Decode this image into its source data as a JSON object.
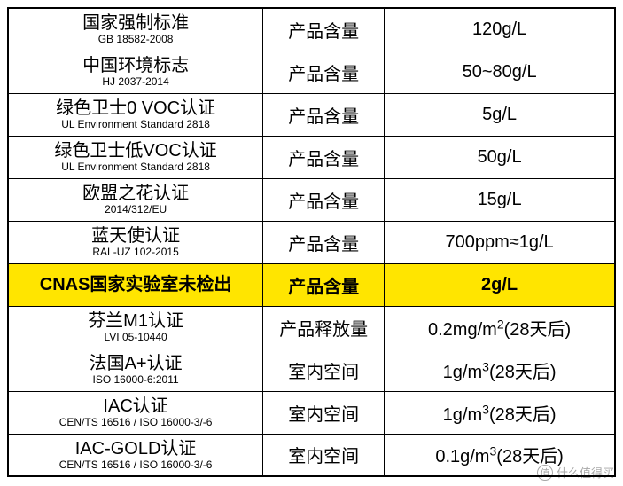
{
  "table": {
    "columns": [
      "name",
      "type",
      "value"
    ],
    "col_widths_pct": [
      42,
      20,
      38
    ],
    "border_color": "#000000",
    "background_color": "#ffffff",
    "highlight_color": "#ffe500",
    "main_fontsize": 20,
    "sub_fontsize": 12,
    "rows": [
      {
        "name": "国家强制标准",
        "sub": "GB 18582-2008",
        "type": "产品含量",
        "value": "120g/L",
        "highlight": false
      },
      {
        "name": "中国环境标志",
        "sub": "HJ 2037-2014",
        "type": "产品含量",
        "value": "50~80g/L",
        "highlight": false
      },
      {
        "name": "绿色卫士0 VOC认证",
        "sub": "UL Environment Standard 2818",
        "type": "产品含量",
        "value": "5g/L",
        "highlight": false
      },
      {
        "name": "绿色卫士低VOC认证",
        "sub": "UL Environment Standard 2818",
        "type": "产品含量",
        "value": "50g/L",
        "highlight": false
      },
      {
        "name": "欧盟之花认证",
        "sub": "2014/312/EU",
        "type": "产品含量",
        "value": "15g/L",
        "highlight": false
      },
      {
        "name": "蓝天使认证",
        "sub": "RAL-UZ 102-2015",
        "type": "产品含量",
        "value": "700ppm≈1g/L",
        "highlight": false
      },
      {
        "name": "CNAS国家实验室未检出",
        "sub": "",
        "type": "产品含量",
        "value": "2g/L",
        "highlight": true
      },
      {
        "name": "芬兰M1认证",
        "sub": "LVI 05-10440",
        "type": "产品释放量",
        "value_html": "0.2mg/m<sup>2</sup>(28天后)",
        "highlight": false
      },
      {
        "name": "法国A+认证",
        "sub": "ISO 16000-6:2011",
        "type": "室内空间",
        "value_html": "1g/m<sup>3</sup>(28天后)",
        "highlight": false
      },
      {
        "name": "IAC认证",
        "sub": "CEN/TS 16516 / ISO 16000-3/-6",
        "type": "室内空间",
        "value_html": "1g/m<sup>3</sup>(28天后)",
        "highlight": false
      },
      {
        "name": "IAC-GOLD认证",
        "sub": "CEN/TS 16516 / ISO 16000-3/-6",
        "type": "室内空间",
        "value_html": "0.1g/m<sup>3</sup>(28天后)",
        "highlight": false
      }
    ]
  },
  "watermark": {
    "logo": "值",
    "text": "什么值得买"
  }
}
